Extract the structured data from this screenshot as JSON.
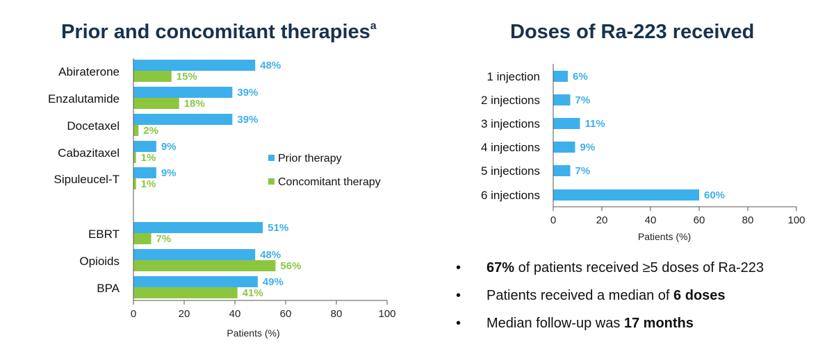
{
  "colors": {
    "prior": "#3db0ec",
    "concomitant": "#8cc63f",
    "axis": "#555555",
    "title": "#16324f"
  },
  "left_panel": {
    "title": "Prior and concomitant therapies",
    "title_sup": "a"
  },
  "right_panel": {
    "title": "Doses of Ra-223 received"
  },
  "bullets": [
    {
      "marker": "•",
      "pre": "",
      "bold": "67%",
      "post": " of patients received ≥5 doses of Ra-223"
    },
    {
      "marker": "•",
      "pre": "Patients received a median of ",
      "bold": "6 doses",
      "post": ""
    },
    {
      "marker": "•",
      "pre": "Median follow-up was ",
      "bold": "17 months",
      "post": ""
    }
  ],
  "chart_data": [
    {
      "type": "bar",
      "orientation": "horizontal",
      "title": "Prior and concomitant therapies",
      "xlabel": "Patients (%)",
      "xlim": [
        0,
        100
      ],
      "xticks": [
        "0",
        "20",
        "40",
        "60",
        "80",
        "100"
      ],
      "legend_position": "right",
      "categories": [
        "Abiraterone",
        "Enzalutamide",
        "Docetaxel",
        "Cabazitaxel",
        "Sipuleucel-T",
        "EBRT",
        "Opioids",
        "BPA"
      ],
      "series": [
        {
          "name": "Prior therapy",
          "values": [
            48,
            39,
            39,
            9,
            9,
            51,
            48,
            49
          ],
          "labels": [
            "48%",
            "39%",
            "39%",
            "9%",
            "9%",
            "51%",
            "48%",
            "49%"
          ]
        },
        {
          "name": "Concomitant therapy",
          "values": [
            15,
            18,
            2,
            1,
            1,
            7,
            56,
            41
          ],
          "labels": [
            "15%",
            "18%",
            "2%",
            "1%",
            "1%",
            "7%",
            "56%",
            "41%"
          ]
        }
      ]
    },
    {
      "type": "bar",
      "orientation": "horizontal",
      "title": "Doses of Ra-223 received",
      "xlabel": "Patients (%)",
      "xlim": [
        0,
        100
      ],
      "xticks": [
        "0",
        "20",
        "40",
        "60",
        "80",
        "100"
      ],
      "categories": [
        "1 injection",
        "2 injections",
        "3 injections",
        "4 injections",
        "5 injections",
        "6 injections"
      ],
      "values": [
        6,
        7,
        11,
        9,
        7,
        60
      ],
      "labels": [
        "6%",
        "7%",
        "11%",
        "9%",
        "7%",
        "60%"
      ]
    }
  ]
}
